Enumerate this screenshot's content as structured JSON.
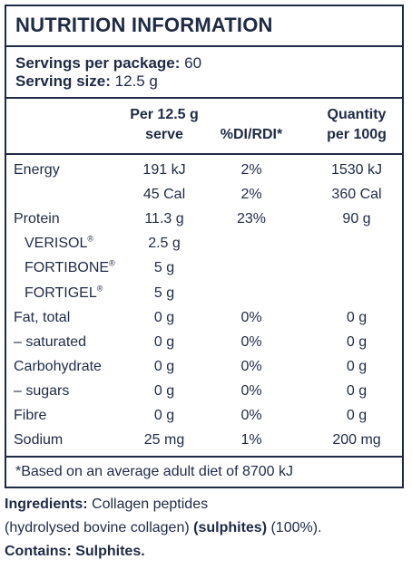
{
  "panel": {
    "title": "NUTRITION INFORMATION",
    "servings_label": "Servings per package:",
    "servings_value": "60",
    "serving_size_label": "Serving size:",
    "serving_size_value": "12.5 g"
  },
  "table": {
    "headers": {
      "per_serve_line1": "Per 12.5 g",
      "per_serve_line2": "serve",
      "rdi": "%DI/RDI*",
      "per100_line1": "Quantity",
      "per100_line2": "per 100g"
    },
    "rows": [
      {
        "label": "Energy",
        "serve": "191 kJ",
        "rdi": "2%",
        "per100": "1530 kJ"
      },
      {
        "label": "",
        "serve": "45 Cal",
        "rdi": "2%",
        "per100": "360 Cal"
      },
      {
        "label": "Protein",
        "serve": "11.3 g",
        "rdi": "23%",
        "per100": "90 g"
      },
      {
        "label": "VERISOL",
        "sup": "®",
        "serve": "2.5 g",
        "rdi": "",
        "per100": ""
      },
      {
        "label": "FORTIBONE",
        "sup": "®",
        "serve": "5 g",
        "rdi": "",
        "per100": ""
      },
      {
        "label": "FORTIGEL",
        "sup": "®",
        "serve": "5 g",
        "rdi": "",
        "per100": ""
      },
      {
        "label": "Fat, total",
        "serve": "0 g",
        "rdi": "0%",
        "per100": "0 g"
      },
      {
        "label": "– saturated",
        "serve": "0 g",
        "rdi": "0%",
        "per100": "0 g"
      },
      {
        "label": "Carbohydrate",
        "serve": "0 g",
        "rdi": "0%",
        "per100": "0 g"
      },
      {
        "label": "– sugars",
        "serve": "0 g",
        "rdi": "0%",
        "per100": "0 g"
      },
      {
        "label": "Fibre",
        "serve": "0 g",
        "rdi": "0%",
        "per100": "0 g"
      },
      {
        "label": "Sodium",
        "serve": "25 mg",
        "rdi": "1%",
        "per100": "200 mg"
      }
    ],
    "footnote": "*Based on an average adult diet of 8700 kJ"
  },
  "ingredients": {
    "label": "Ingredients:",
    "text1": " Collagen peptides",
    "text2_pre": "(hydrolysed bovine collagen) ",
    "text2_bold": "(sulphites)",
    "text2_post": " (100%).",
    "contains": "Contains: Sulphites."
  }
}
